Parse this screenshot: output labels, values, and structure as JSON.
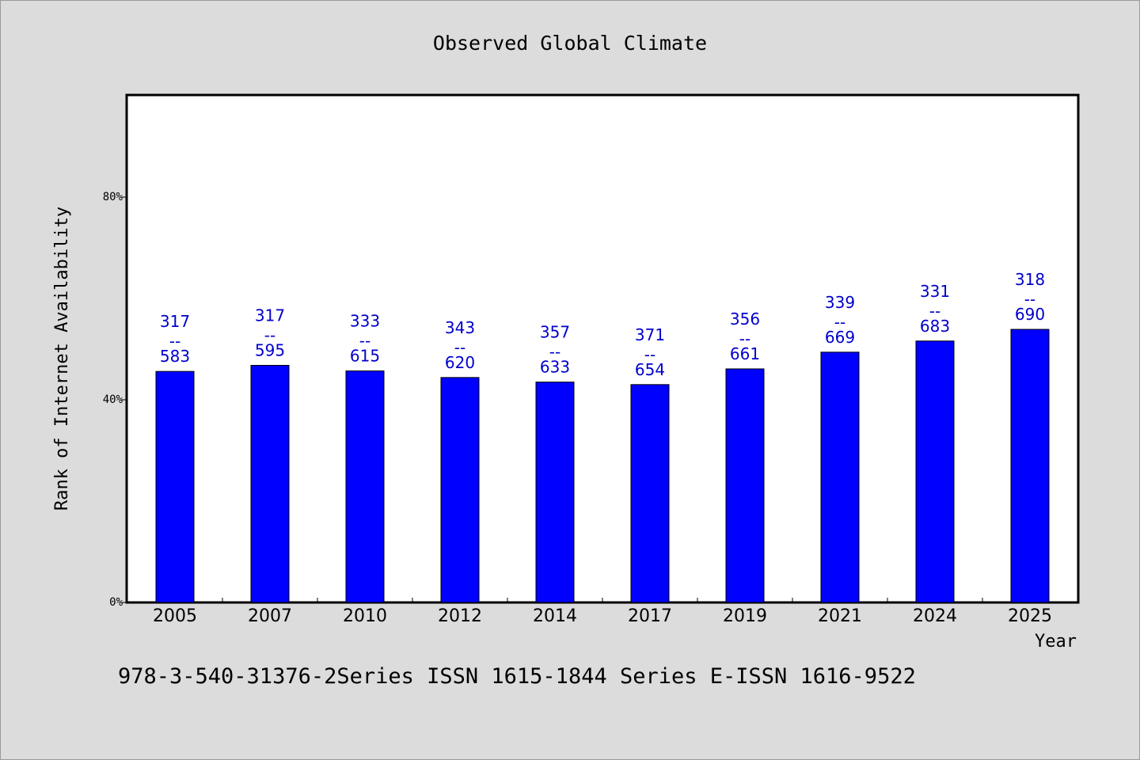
{
  "chart_data": {
    "type": "bar",
    "title": "Observed Global Climate",
    "xlabel": "Year",
    "ylabel": "Rank of Internet Availability",
    "categories": [
      "2005",
      "2007",
      "2010",
      "2012",
      "2014",
      "2017",
      "2019",
      "2021",
      "2024",
      "2025"
    ],
    "values": [
      45.6,
      46.8,
      45.7,
      44.4,
      43.5,
      43.0,
      46.1,
      49.4,
      51.6,
      53.9
    ],
    "data_labels": [
      {
        "top": "317",
        "sep": "--",
        "bottom": "583"
      },
      {
        "top": "317",
        "sep": "--",
        "bottom": "595"
      },
      {
        "top": "333",
        "sep": "--",
        "bottom": "615"
      },
      {
        "top": "343",
        "sep": "--",
        "bottom": "620"
      },
      {
        "top": "357",
        "sep": "--",
        "bottom": "633"
      },
      {
        "top": "371",
        "sep": "--",
        "bottom": "654"
      },
      {
        "top": "356",
        "sep": "--",
        "bottom": "661"
      },
      {
        "top": "339",
        "sep": "--",
        "bottom": "669"
      },
      {
        "top": "331",
        "sep": "--",
        "bottom": "683"
      },
      {
        "top": "318",
        "sep": "--",
        "bottom": "690"
      }
    ],
    "ylim": [
      0,
      100
    ],
    "yticks": [
      0,
      40,
      80
    ],
    "ytick_labels": [
      "0%",
      "40%",
      "80%"
    ],
    "grid": false,
    "legend": "none",
    "colors": {
      "bar": "#0000ff",
      "label": "#0000cc",
      "background": "#dcdcdc",
      "plot": "#ffffff"
    }
  },
  "footer": "978-3-540-31376-2Series ISSN 1615-1844 Series E-ISSN 1616-9522"
}
